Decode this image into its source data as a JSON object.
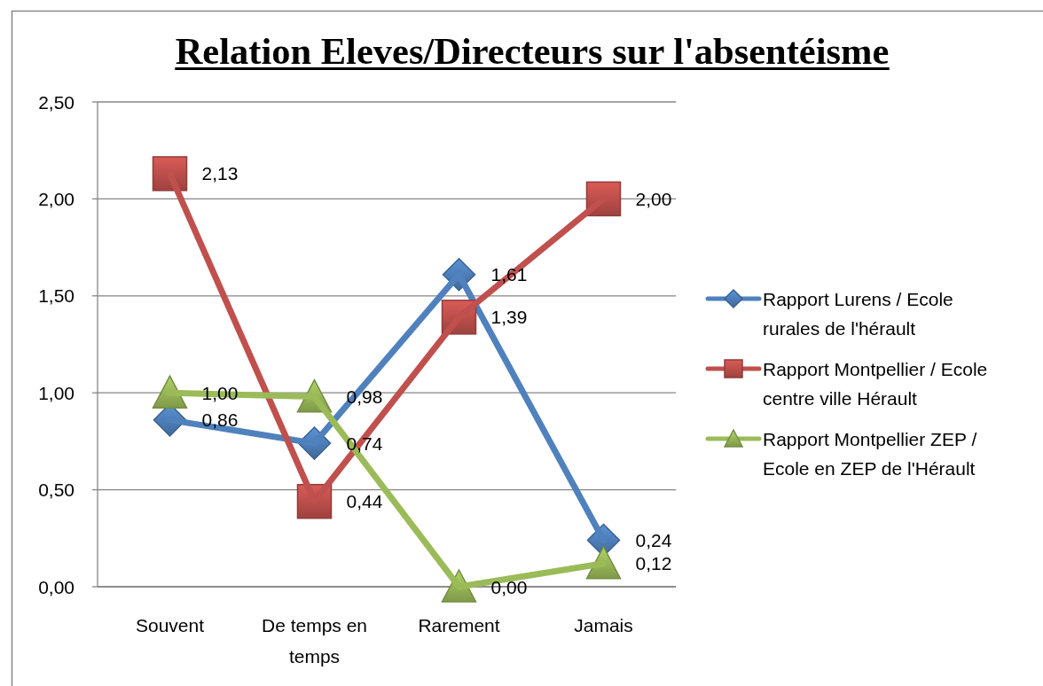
{
  "chart_data": {
    "type": "line",
    "title": "Relation Eleves/Directeurs sur l'absentéisme",
    "categories": [
      "Souvent",
      "De temps en temps",
      "Rarement",
      "Jamais"
    ],
    "series": [
      {
        "name": "Rapport Lurens / Ecole rurales de l'hérault",
        "color": "#4f81bd",
        "marker": "diamond",
        "values": [
          0.86,
          0.74,
          1.61,
          0.24
        ],
        "value_labels": [
          "0,86",
          "0,74",
          "1,61",
          "0,24"
        ]
      },
      {
        "name": "Rapport Montpellier / Ecole centre ville Hérault",
        "color": "#c0504d",
        "marker": "square",
        "values": [
          2.13,
          0.44,
          1.39,
          2.0
        ],
        "value_labels": [
          "2,13",
          "0,44",
          "1,39",
          "2,00"
        ]
      },
      {
        "name": "Rapport Montpellier ZEP / Ecole en ZEP de l'Hérault",
        "color": "#9bbb59",
        "marker": "triangle",
        "values": [
          1.0,
          0.98,
          0.0,
          0.12
        ],
        "value_labels": [
          "1,00",
          "0,98",
          "0,00",
          "0,12"
        ]
      }
    ],
    "ylim": [
      0,
      2.5
    ],
    "yticks": [
      {
        "value": 0,
        "label": "0,00"
      },
      {
        "value": 0.5,
        "label": "0,50"
      },
      {
        "value": 1,
        "label": "1,00"
      },
      {
        "value": 1.5,
        "label": "1,50"
      },
      {
        "value": 2,
        "label": "2,00"
      },
      {
        "value": 2.5,
        "label": "2,50"
      }
    ],
    "grid": "y",
    "legend": "right"
  }
}
